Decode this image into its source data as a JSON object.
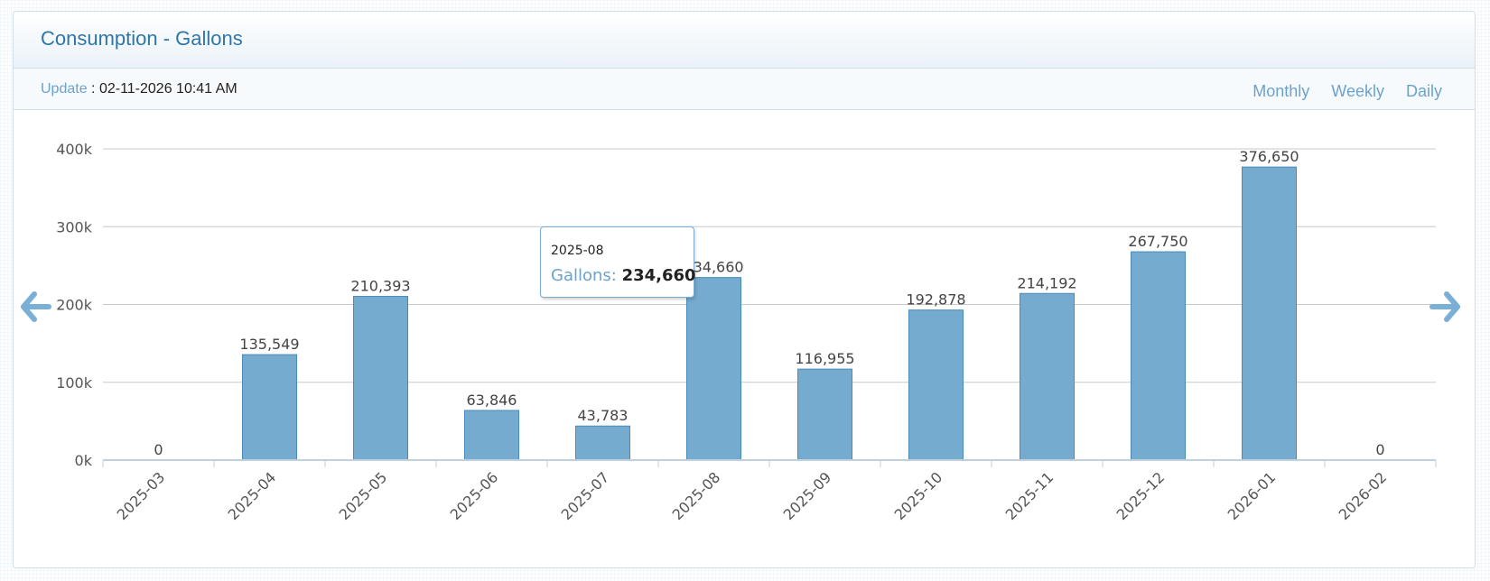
{
  "panel": {
    "title": "Consumption - Gallons",
    "update_label": "Update",
    "update_separator": " : ",
    "update_value": "02-11-2026 10:41 AM",
    "range_links": [
      "Monthly",
      "Weekly",
      "Daily"
    ]
  },
  "nav": {
    "prev_icon": "arrow-left-icon",
    "next_icon": "arrow-right-icon"
  },
  "tooltip": {
    "x_label": "2025-08",
    "series_name": "Gallons",
    "separator": ": ",
    "value_text": "234,660"
  },
  "colors": {
    "bar_fill": "#74abcf",
    "bar_stroke": "#4a8bbb",
    "grid": "#c8c8c8",
    "axis": "#c0d0dc",
    "title": "#2f76a8",
    "link": "#6ba3cc"
  },
  "chart_data": {
    "type": "bar",
    "categories": [
      "2025-03",
      "2025-04",
      "2025-05",
      "2025-06",
      "2025-07",
      "2025-08",
      "2025-09",
      "2025-10",
      "2025-11",
      "2025-12",
      "2026-01",
      "2026-02"
    ],
    "series": [
      {
        "name": "Gallons",
        "values": [
          0,
          135549,
          210393,
          63846,
          43783,
          234660,
          116955,
          192878,
          214192,
          267750,
          376650,
          0
        ]
      }
    ],
    "data_labels": [
      "0",
      "135,549",
      "210,393",
      "63,846",
      "43,783",
      "234,660",
      "116,955",
      "192,878",
      "214,192",
      "267,750",
      "376,650",
      "0"
    ],
    "y_ticks": [
      0,
      100000,
      200000,
      300000,
      400000
    ],
    "y_tick_labels": [
      "0k",
      "100k",
      "200k",
      "300k",
      "400k"
    ],
    "ylim": [
      0,
      400000
    ],
    "xlabel": "",
    "ylabel": "",
    "grid": true,
    "legend": "none"
  }
}
